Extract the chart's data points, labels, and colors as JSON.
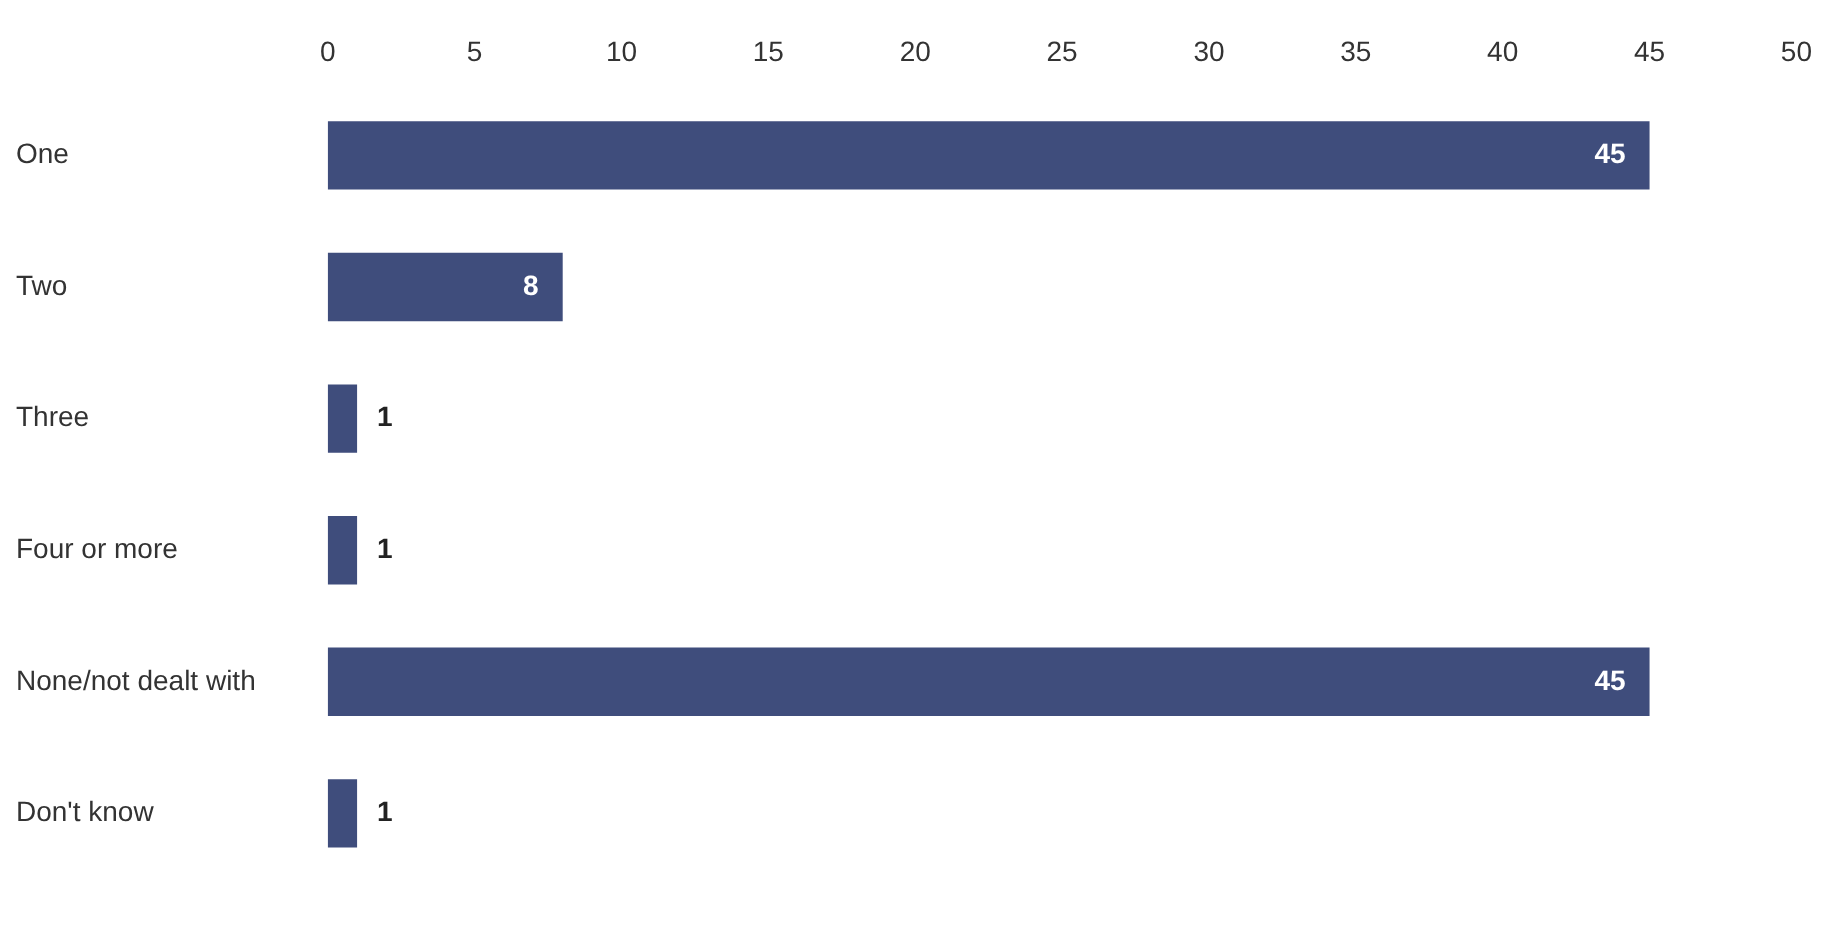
{
  "chart_data": {
    "type": "bar",
    "orientation": "horizontal",
    "categories": [
      "One",
      "Two",
      "Three",
      "Four or more",
      "None/not dealt with",
      "Don't know"
    ],
    "values": [
      45,
      8,
      1,
      1,
      45,
      1
    ],
    "color": "#3f4d7c",
    "xlim": [
      0,
      50
    ],
    "xticks": [
      0,
      5,
      10,
      15,
      20,
      25,
      30,
      35,
      40,
      45,
      50
    ],
    "grid": false,
    "legend": false,
    "data_labels": true
  }
}
